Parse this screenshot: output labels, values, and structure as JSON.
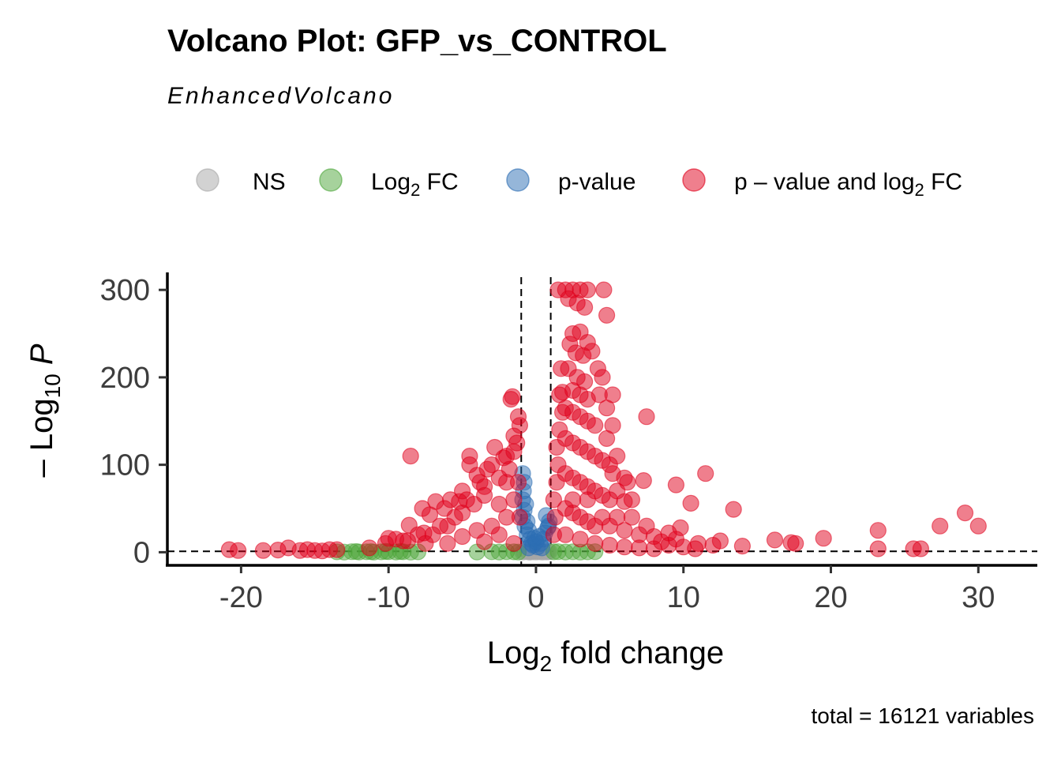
{
  "chart_data": {
    "type": "scatter",
    "title": "Volcano Plot: GFP_vs_CONTROL",
    "subtitle": "EnhancedVolcano",
    "caption": "total = 16121 variables",
    "xlabel": {
      "base": "Log",
      "sub": "2",
      "rest": " fold change"
    },
    "ylabel": {
      "prefix": "– Log",
      "sub": "10",
      "italic": "P"
    },
    "xlim": [
      -25,
      34
    ],
    "ylim": [
      -15,
      320
    ],
    "x_ticks": [
      -20,
      -10,
      0,
      10,
      20,
      30
    ],
    "x_tick_labels": [
      "-20",
      "-10",
      "0",
      "10",
      "20",
      "30"
    ],
    "y_ticks": [
      0,
      100,
      200,
      300
    ],
    "y_tick_labels": [
      "0",
      "100",
      "200",
      "300"
    ],
    "fc_cutoff": 1,
    "p_cutoff_neglog10": 1,
    "legend": [
      {
        "key": "NS",
        "label": "NS",
        "color": "#a6a6a6"
      },
      {
        "key": "FC",
        "label_base": "Log",
        "label_sub": "2",
        "label_rest": " FC",
        "color": "#4da63a"
      },
      {
        "key": "P",
        "label": "p-value",
        "color": "#2c6db3"
      },
      {
        "key": "FC_P",
        "label_base": "p – value and log",
        "label_sub": "2",
        "label_rest": " FC",
        "color": "#e0001b"
      }
    ],
    "series": [
      {
        "name": "NS",
        "color": "#a6a6a6",
        "points": [
          [
            -0.8,
            0.5
          ],
          [
            -0.5,
            0.3
          ],
          [
            -0.3,
            0.8
          ],
          [
            0,
            0.2
          ],
          [
            0.2,
            0.6
          ],
          [
            0.5,
            0.4
          ],
          [
            0.8,
            0.7
          ],
          [
            -0.6,
            0.9
          ],
          [
            0.4,
            0.1
          ],
          [
            -0.2,
            0.5
          ],
          [
            0.7,
            0.3
          ],
          [
            -0.9,
            0.2
          ],
          [
            0.1,
            0.9
          ],
          [
            -0.4,
            0.1
          ],
          [
            0.9,
            0.5
          ]
        ]
      },
      {
        "name": "Log2 FC",
        "color": "#4da63a",
        "points": [
          [
            -13.5,
            0.4
          ],
          [
            -13,
            0.2
          ],
          [
            -12.5,
            0.6
          ],
          [
            -12,
            0.3
          ],
          [
            -11.5,
            0.5
          ],
          [
            -11,
            0.2
          ],
          [
            -10.5,
            0.4
          ],
          [
            -10,
            0.6
          ],
          [
            -9.5,
            0.3
          ],
          [
            -9,
            0.5
          ],
          [
            -8.5,
            0.2
          ],
          [
            -8,
            0.4
          ],
          [
            -12.2,
            0.8
          ],
          [
            -11.2,
            0.7
          ],
          [
            -10.2,
            0.9
          ],
          [
            -9.2,
            0.8
          ],
          [
            -3,
            0.5
          ],
          [
            -2.5,
            0.3
          ],
          [
            -2,
            0.6
          ],
          [
            -1.5,
            0.4
          ],
          [
            -1.2,
            0.2
          ],
          [
            1.2,
            0.4
          ],
          [
            1.5,
            0.6
          ],
          [
            2,
            0.3
          ],
          [
            2.5,
            0.5
          ],
          [
            3,
            0.2
          ],
          [
            3.5,
            0.4
          ],
          [
            -4,
            0.3
          ],
          [
            4,
            0.6
          ]
        ]
      },
      {
        "name": "p-value",
        "color": "#2c6db3",
        "points": [
          [
            -0.9,
            90
          ],
          [
            -0.8,
            80
          ],
          [
            -0.85,
            70
          ],
          [
            -0.9,
            60
          ],
          [
            -0.7,
            55
          ],
          [
            -0.8,
            48
          ],
          [
            -0.9,
            40
          ],
          [
            -0.6,
            35
          ],
          [
            -0.75,
            30
          ],
          [
            -0.5,
            25
          ],
          [
            -0.6,
            20
          ],
          [
            -0.4,
            15
          ],
          [
            -0.3,
            10
          ],
          [
            -0.2,
            8
          ],
          [
            0.1,
            6
          ],
          [
            0.3,
            10
          ],
          [
            0.5,
            15
          ],
          [
            0.6,
            22
          ],
          [
            0.8,
            28
          ],
          [
            0.9,
            35
          ],
          [
            0.7,
            42
          ],
          [
            0.85,
            30
          ],
          [
            0.4,
            5
          ],
          [
            -0.5,
            5
          ],
          [
            0,
            12
          ],
          [
            0.2,
            18
          ],
          [
            -0.1,
            16
          ]
        ]
      },
      {
        "name": "p-value and log2 FC",
        "color": "#e0001b",
        "points": [
          [
            -20.8,
            3
          ],
          [
            -20.2,
            2
          ],
          [
            -18.5,
            2
          ],
          [
            -17.5,
            2.5
          ],
          [
            -16.8,
            5
          ],
          [
            -16,
            2
          ],
          [
            -15.5,
            3
          ],
          [
            -15,
            2
          ],
          [
            -14.5,
            1.5
          ],
          [
            -14,
            3
          ],
          [
            -13.5,
            3
          ],
          [
            -11.3,
            5
          ],
          [
            -10.2,
            10
          ],
          [
            -10,
            16
          ],
          [
            -9.5,
            15
          ],
          [
            -9,
            13
          ],
          [
            -8.5,
            110
          ],
          [
            -8.6,
            31
          ],
          [
            -8.7,
            13
          ],
          [
            -8,
            20
          ],
          [
            -7.5,
            10
          ],
          [
            -7.6,
            22
          ],
          [
            -7.7,
            50
          ],
          [
            -7,
            20
          ],
          [
            -7.2,
            43
          ],
          [
            -6.5,
            30
          ],
          [
            -6.8,
            58
          ],
          [
            -6,
            30
          ],
          [
            -6.2,
            50
          ],
          [
            -5.8,
            60
          ],
          [
            -5.5,
            40
          ],
          [
            -5.2,
            58
          ],
          [
            -5,
            45
          ],
          [
            -5,
            70
          ],
          [
            -4.7,
            60
          ],
          [
            -4.5,
            110
          ],
          [
            -4.5,
            100
          ],
          [
            -4.2,
            55
          ],
          [
            -4,
            88
          ],
          [
            -3.8,
            80
          ],
          [
            -3.5,
            75
          ],
          [
            -3.3,
            95
          ],
          [
            -3,
            100
          ],
          [
            -2.8,
            120
          ],
          [
            -2.5,
            85
          ],
          [
            -2.2,
            108
          ],
          [
            -2,
            110
          ],
          [
            -2,
            80
          ],
          [
            -1.8,
            95
          ],
          [
            -1.5,
            115
          ],
          [
            -1.7,
            175
          ],
          [
            -1.6,
            178
          ],
          [
            -1.3,
            125
          ],
          [
            -1.2,
            155
          ],
          [
            -1.1,
            145
          ],
          [
            -1.5,
            133
          ],
          [
            -3.5,
            65
          ],
          [
            -2.5,
            55
          ],
          [
            -2,
            40
          ],
          [
            -1.5,
            60
          ],
          [
            -1.2,
            80
          ],
          [
            -1.1,
            40
          ],
          [
            -3,
            30
          ],
          [
            -4,
            25
          ],
          [
            -5,
            18
          ],
          [
            -6,
            10
          ],
          [
            -2.5,
            20
          ],
          [
            -1.5,
            10
          ],
          [
            -3.5,
            12
          ],
          [
            1.2,
            20
          ],
          [
            1.3,
            40
          ],
          [
            1.2,
            60
          ],
          [
            1.4,
            80
          ],
          [
            1.5,
            100
          ],
          [
            1.4,
            120
          ],
          [
            1.6,
            140
          ],
          [
            1.8,
            160
          ],
          [
            1.6,
            180
          ],
          [
            1.7,
            210
          ],
          [
            1.8,
            183
          ],
          [
            1.5,
            300
          ],
          [
            2,
            300
          ],
          [
            2.5,
            300
          ],
          [
            3,
            300
          ],
          [
            3.5,
            300
          ],
          [
            2.2,
            290
          ],
          [
            2.8,
            285
          ],
          [
            3.3,
            280
          ],
          [
            4.6,
            300
          ],
          [
            4.8,
            271
          ],
          [
            2.5,
            250
          ],
          [
            3,
            252
          ],
          [
            3.5,
            240
          ],
          [
            2.3,
            238
          ],
          [
            2.7,
            228
          ],
          [
            3.2,
            225
          ],
          [
            3.8,
            230
          ],
          [
            2.2,
            210
          ],
          [
            2.8,
            200
          ],
          [
            3.3,
            195
          ],
          [
            4.2,
            210
          ],
          [
            4.5,
            200
          ],
          [
            2.5,
            185
          ],
          [
            3,
            180
          ],
          [
            3.5,
            175
          ],
          [
            4.3,
            180
          ],
          [
            5.2,
            180
          ],
          [
            2,
            165
          ],
          [
            2.5,
            160
          ],
          [
            3,
            155
          ],
          [
            3.5,
            150
          ],
          [
            4,
            145
          ],
          [
            4.8,
            165
          ],
          [
            4.8,
            130
          ],
          [
            5.2,
            145
          ],
          [
            7.5,
            155
          ],
          [
            2,
            130
          ],
          [
            2.5,
            125
          ],
          [
            3,
            120
          ],
          [
            3.5,
            115
          ],
          [
            4,
            110
          ],
          [
            4.5,
            105
          ],
          [
            5,
            100
          ],
          [
            5.5,
            110
          ],
          [
            5.2,
            90
          ],
          [
            6,
            85
          ],
          [
            2,
            90
          ],
          [
            2.5,
            85
          ],
          [
            3,
            80
          ],
          [
            3.5,
            75
          ],
          [
            4,
            70
          ],
          [
            4.5,
            65
          ],
          [
            5,
            60
          ],
          [
            5.5,
            70
          ],
          [
            6,
            58
          ],
          [
            6.5,
            60
          ],
          [
            6.2,
            80
          ],
          [
            7.3,
            82
          ],
          [
            2,
            50
          ],
          [
            2.5,
            45
          ],
          [
            3,
            40
          ],
          [
            3.5,
            35
          ],
          [
            4,
            30
          ],
          [
            5,
            30
          ],
          [
            6,
            25
          ],
          [
            7,
            20
          ],
          [
            8,
            18
          ],
          [
            9,
            22
          ],
          [
            9.8,
            28
          ],
          [
            9.5,
            77
          ],
          [
            10.5,
            56
          ],
          [
            11.5,
            90
          ],
          [
            13.4,
            49
          ],
          [
            2,
            20
          ],
          [
            3,
            15
          ],
          [
            4,
            10
          ],
          [
            5,
            8
          ],
          [
            6,
            6
          ],
          [
            7,
            5
          ],
          [
            8,
            4
          ],
          [
            9,
            8
          ],
          [
            10,
            6
          ],
          [
            11,
            10
          ],
          [
            12,
            8
          ],
          [
            12.5,
            13
          ],
          [
            14,
            7
          ],
          [
            10.8,
            4
          ],
          [
            16.2,
            14
          ],
          [
            17.3,
            11
          ],
          [
            17.6,
            10
          ],
          [
            19.5,
            16
          ],
          [
            23.2,
            25
          ],
          [
            23.2,
            4
          ],
          [
            25.6,
            4
          ],
          [
            26.1,
            4
          ],
          [
            27.4,
            30
          ],
          [
            29.1,
            45
          ],
          [
            30,
            30
          ],
          [
            2.5,
            60
          ],
          [
            3.5,
            60
          ],
          [
            4.5,
            40
          ],
          [
            5.5,
            40
          ],
          [
            6.5,
            40
          ],
          [
            7.5,
            30
          ],
          [
            8.5,
            12
          ],
          [
            9.5,
            15
          ]
        ]
      }
    ]
  }
}
